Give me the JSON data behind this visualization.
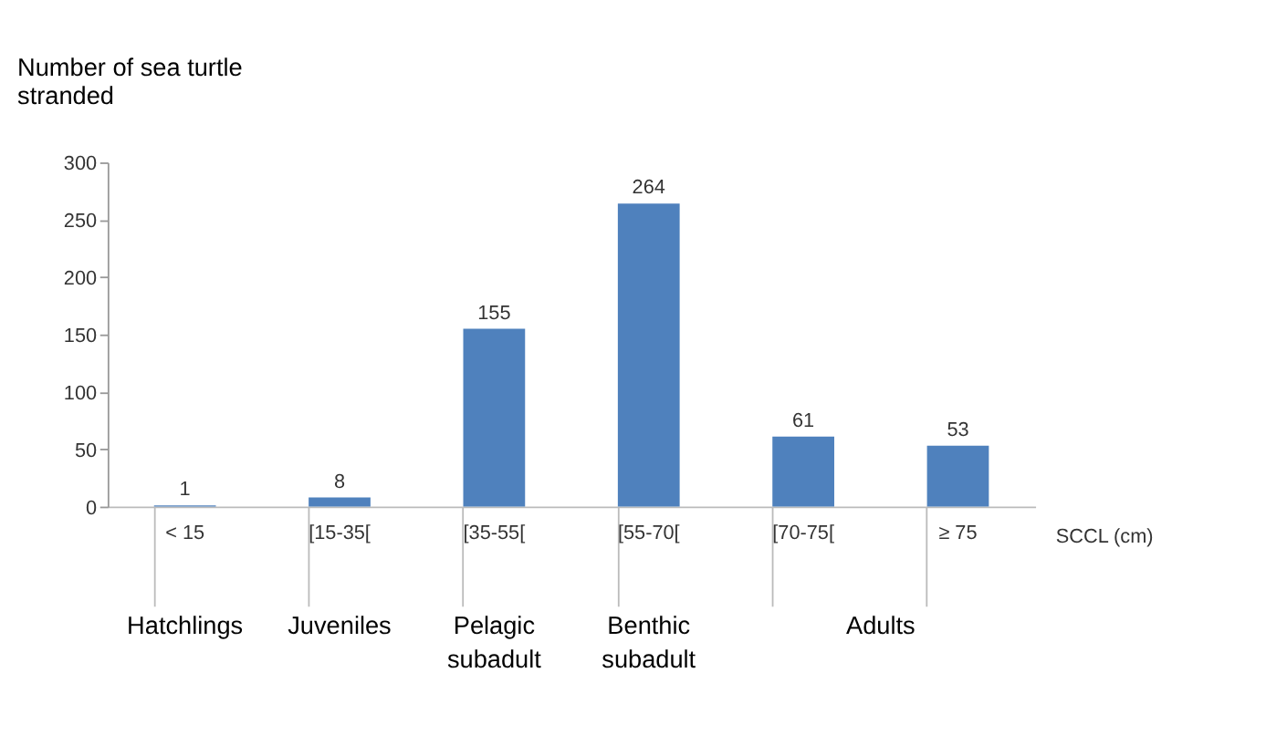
{
  "chart_data": {
    "type": "bar",
    "ylabel": "Number of sea turtle stranded",
    "xlabel": "SCCL (cm)",
    "categories": [
      "< 15",
      "[15-35[",
      "[35-55[",
      "[55-70[",
      "[70-75[",
      "≥ 75"
    ],
    "values": [
      1,
      8,
      155,
      264,
      61,
      53
    ],
    "color": "#4f81bd",
    "ylim": [
      0,
      300
    ],
    "yticks": [
      0,
      50,
      100,
      150,
      200,
      250,
      300
    ],
    "data_labels": true,
    "grid": false,
    "annotations": [
      "Hatchlings",
      "Juveniles",
      "Pelagic subadult",
      "Benthic subadult",
      "Adults"
    ]
  }
}
